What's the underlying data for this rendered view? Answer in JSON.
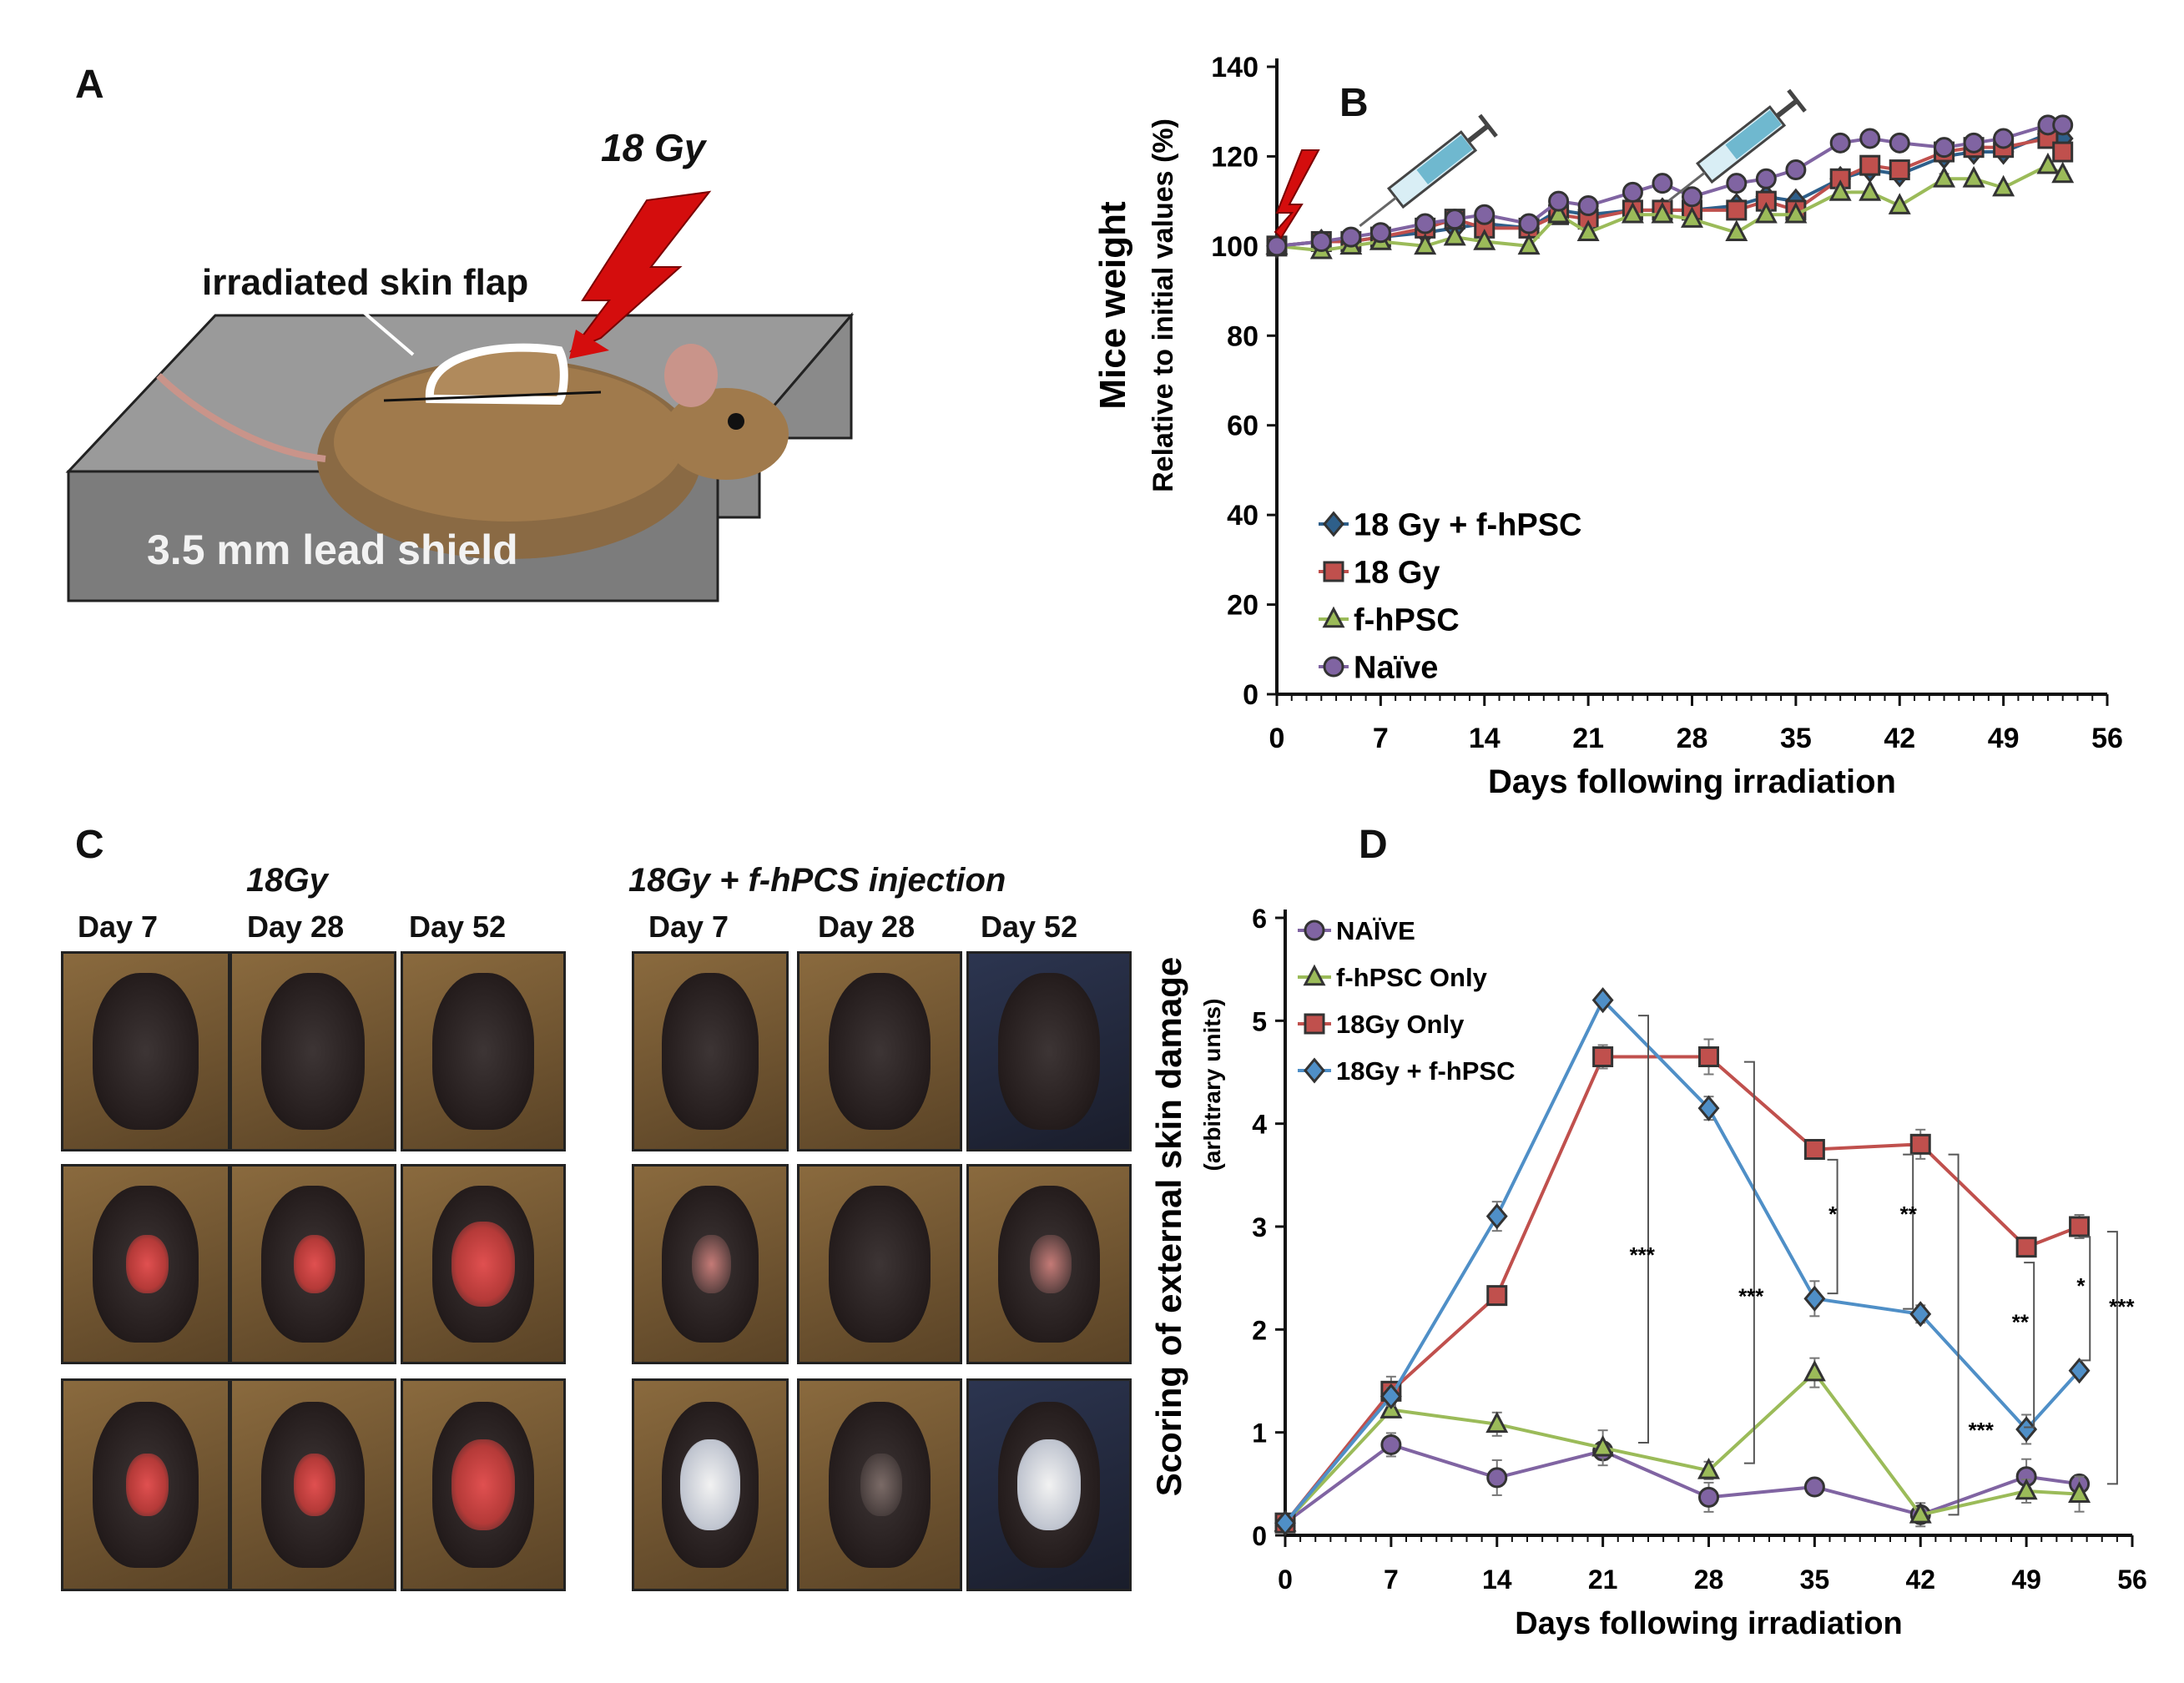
{
  "panels": {
    "a": "A",
    "b": "B",
    "c": "C",
    "d": "D"
  },
  "panel_a": {
    "dose_label": "18 Gy",
    "skin_flap_label": "irradiated skin flap",
    "shield_label": "3.5 mm lead shield"
  },
  "panel_c": {
    "group1_title": "18Gy",
    "group2_title": "18Gy + f-hPCS injection",
    "days": [
      "Day 7",
      "Day 28",
      "Day 52"
    ]
  },
  "chart_data": [
    {
      "type": "line",
      "panel": "B",
      "title": "",
      "xlabel": "Days following irradiation",
      "ylabel": "Mice weight",
      "ylabel2": "Relative to initial values (%)",
      "xlim": [
        0,
        56
      ],
      "ylim": [
        0,
        140
      ],
      "xticks": [
        "0",
        "7",
        "14",
        "21",
        "28",
        "35",
        "42",
        "49",
        "56"
      ],
      "yticks": [
        "0",
        "20",
        "40",
        "60",
        "80",
        "100",
        "120",
        "140"
      ],
      "legend": [
        "18 Gy + f-hPSC",
        "18 Gy",
        "f-hPSC",
        "Naïve"
      ],
      "series": [
        {
          "name": "18 Gy + f-hPSC",
          "color": "#2e5f8a",
          "marker": "diamond",
          "x": [
            0,
            3,
            5,
            7,
            10,
            12,
            14,
            17,
            19,
            21,
            24,
            26,
            28,
            31,
            33,
            35,
            38,
            40,
            42,
            45,
            47,
            49,
            52,
            53
          ],
          "y": [
            100,
            101,
            101,
            102,
            103,
            104,
            105,
            104,
            108,
            107,
            108,
            108,
            108,
            109,
            111,
            110,
            115,
            117,
            116,
            120,
            121,
            121,
            125,
            124
          ]
        },
        {
          "name": "18 Gy",
          "color": "#c0504d",
          "marker": "square",
          "x": [
            0,
            3,
            5,
            7,
            10,
            12,
            14,
            17,
            19,
            21,
            24,
            26,
            28,
            31,
            33,
            35,
            38,
            40,
            42,
            45,
            47,
            49,
            52,
            53
          ],
          "y": [
            100,
            101,
            101,
            102,
            104,
            106,
            104,
            104,
            107,
            106,
            108,
            108,
            108,
            108,
            110,
            108,
            115,
            118,
            117,
            121,
            122,
            122,
            124,
            121
          ]
        },
        {
          "name": "f-hPSC",
          "color": "#9bbb59",
          "marker": "triangle",
          "x": [
            0,
            3,
            5,
            7,
            10,
            12,
            14,
            17,
            19,
            21,
            24,
            26,
            28,
            31,
            33,
            35,
            38,
            40,
            42,
            45,
            47,
            49,
            52,
            53
          ],
          "y": [
            100,
            99,
            100,
            101,
            100,
            102,
            101,
            100,
            107,
            103,
            107,
            107,
            106,
            103,
            107,
            107,
            112,
            112,
            109,
            115,
            115,
            113,
            118,
            116
          ]
        },
        {
          "name": "Naïve",
          "color": "#8064a2",
          "marker": "circle",
          "x": [
            0,
            3,
            5,
            7,
            10,
            12,
            14,
            17,
            19,
            21,
            24,
            26,
            28,
            31,
            33,
            35,
            38,
            40,
            42,
            45,
            47,
            49,
            52,
            53
          ],
          "y": [
            100,
            101,
            102,
            103,
            105,
            106,
            107,
            105,
            110,
            109,
            112,
            114,
            111,
            114,
            115,
            117,
            123,
            124,
            123,
            122,
            123,
            124,
            127,
            127
          ]
        }
      ]
    },
    {
      "type": "line",
      "panel": "D",
      "title": "",
      "xlabel": "Days following irradiation",
      "ylabel": "Scoring of external skin damage",
      "ylabel2": "(arbitrary units)",
      "xlim": [
        0,
        56
      ],
      "ylim": [
        0,
        6
      ],
      "xticks": [
        "0",
        "7",
        "14",
        "21",
        "28",
        "35",
        "42",
        "49",
        "56"
      ],
      "yticks": [
        "0",
        "1",
        "2",
        "3",
        "4",
        "5",
        "6"
      ],
      "legend": [
        "NAÏVE",
        "f-hPSC Only",
        "18Gy Only",
        "18Gy + f-hPSC"
      ],
      "series": [
        {
          "name": "NAÏVE",
          "color": "#8064a2",
          "marker": "circle",
          "x": [
            0,
            7,
            14,
            21,
            28,
            35,
            42,
            49,
            52.5
          ],
          "y": [
            0.12,
            0.88,
            0.56,
            0.82,
            0.37,
            0.47,
            0.2,
            0.57,
            0.5
          ]
        },
        {
          "name": "f-hPSC Only",
          "color": "#9bbb59",
          "marker": "triangle",
          "x": [
            0,
            7,
            14,
            21,
            28,
            35,
            42,
            49,
            52.5
          ],
          "y": [
            0.12,
            1.22,
            1.08,
            0.85,
            0.63,
            1.58,
            0.2,
            0.43,
            0.4
          ]
        },
        {
          "name": "18Gy Only",
          "color": "#c0504d",
          "marker": "square",
          "x": [
            0,
            7,
            14,
            21,
            28,
            35,
            42,
            49,
            52.5
          ],
          "y": [
            0.12,
            1.4,
            2.33,
            4.65,
            4.65,
            3.75,
            3.8,
            2.8,
            3.0
          ]
        },
        {
          "name": "18Gy + f-hPSC",
          "color": "#4f8fc7",
          "marker": "diamond",
          "x": [
            0,
            7,
            14,
            21,
            28,
            35,
            42,
            49,
            52.5
          ],
          "y": [
            0.12,
            1.35,
            3.1,
            5.2,
            4.15,
            2.3,
            2.15,
            1.03,
            1.6
          ]
        }
      ],
      "annotations": [
        "***",
        "***",
        "*",
        "**",
        "***",
        "**",
        "*",
        "***"
      ]
    }
  ]
}
